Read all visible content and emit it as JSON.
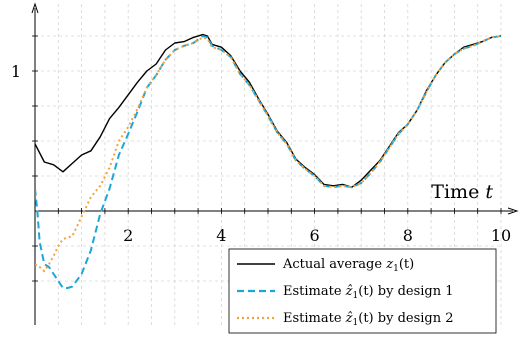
{
  "chart_data": {
    "type": "line",
    "xlabel": "Time",
    "xlabel_var": "t",
    "ylabel": "",
    "xlim": [
      0,
      10
    ],
    "ylim": [
      -0.75,
      1.45
    ],
    "xticks": [
      2,
      4,
      6,
      8,
      10
    ],
    "yticks": [
      1
    ],
    "grid": true,
    "legend_position": "bottom-right",
    "series": [
      {
        "name": "Actual average",
        "math_base": "z",
        "math_sub": "1",
        "math_tail": "(t)",
        "color": "#000000",
        "dash": "solid",
        "x": [
          0,
          0.2,
          0.4,
          0.6,
          0.8,
          1.0,
          1.2,
          1.4,
          1.6,
          1.8,
          2.0,
          2.2,
          2.4,
          2.6,
          2.8,
          3.0,
          3.2,
          3.4,
          3.6,
          3.7,
          3.8,
          4.0,
          4.2,
          4.4,
          4.6,
          4.8,
          5.0,
          5.2,
          5.4,
          5.6,
          5.8,
          6.0,
          6.2,
          6.4,
          6.6,
          6.8,
          7.0,
          7.2,
          7.4,
          7.6,
          7.8,
          8.0,
          8.2,
          8.4,
          8.6,
          8.8,
          9.0,
          9.2,
          9.4,
          9.6,
          9.8,
          10.0
        ],
        "y": [
          0.48,
          0.35,
          0.33,
          0.28,
          0.34,
          0.4,
          0.43,
          0.53,
          0.66,
          0.74,
          0.83,
          0.92,
          1.0,
          1.05,
          1.15,
          1.2,
          1.21,
          1.24,
          1.26,
          1.25,
          1.19,
          1.17,
          1.11,
          1.0,
          0.92,
          0.8,
          0.69,
          0.57,
          0.49,
          0.37,
          0.31,
          0.26,
          0.19,
          0.18,
          0.19,
          0.17,
          0.22,
          0.29,
          0.36,
          0.46,
          0.56,
          0.62,
          0.72,
          0.86,
          0.97,
          1.06,
          1.12,
          1.17,
          1.19,
          1.21,
          1.24,
          1.25
        ]
      },
      {
        "name": "Estimate",
        "name_suffix": "by design 1",
        "math_base": "ẑ",
        "math_sub": "1",
        "math_tail": "(t)",
        "color": "#1aa6d9",
        "dash": "7,4",
        "x": [
          0,
          0.05,
          0.1,
          0.2,
          0.3,
          0.4,
          0.5,
          0.6,
          0.7,
          0.8,
          1.0,
          1.2,
          1.4,
          1.6,
          1.8,
          2.0,
          2.2,
          2.4,
          2.6,
          2.8,
          3.0,
          3.2,
          3.4,
          3.6,
          3.7,
          3.8,
          4.0,
          4.2,
          4.4,
          4.6,
          4.8,
          5.0,
          5.2,
          5.4,
          5.6,
          5.8,
          6.0,
          6.2,
          6.4,
          6.6,
          6.8,
          7.0,
          7.2,
          7.4,
          7.6,
          7.8,
          8.0,
          8.2,
          8.4,
          8.6,
          8.8,
          9.0,
          9.2,
          9.4,
          9.6,
          9.8,
          10.0
        ],
        "y": [
          0.16,
          0.0,
          -0.22,
          -0.38,
          -0.4,
          -0.45,
          -0.5,
          -0.55,
          -0.55,
          -0.54,
          -0.45,
          -0.28,
          -0.02,
          0.16,
          0.4,
          0.55,
          0.71,
          0.88,
          0.97,
          1.08,
          1.15,
          1.18,
          1.2,
          1.25,
          1.24,
          1.18,
          1.15,
          1.1,
          0.98,
          0.9,
          0.79,
          0.68,
          0.56,
          0.48,
          0.36,
          0.3,
          0.25,
          0.18,
          0.17,
          0.18,
          0.17,
          0.2,
          0.27,
          0.35,
          0.45,
          0.55,
          0.62,
          0.72,
          0.85,
          0.97,
          1.06,
          1.12,
          1.16,
          1.18,
          1.21,
          1.24,
          1.25
        ]
      },
      {
        "name": "Estimate",
        "name_suffix": "by design 2",
        "math_base": "ẑ",
        "math_sub": "1",
        "math_tail": "(t)",
        "color": "#f2a33a",
        "dash": "2,3",
        "x": [
          0,
          0.1,
          0.2,
          0.3,
          0.4,
          0.5,
          0.6,
          0.8,
          1.0,
          1.2,
          1.4,
          1.6,
          1.8,
          2.0,
          2.2,
          2.4,
          2.6,
          2.8,
          3.0,
          3.2,
          3.4,
          3.6,
          3.7,
          3.8,
          4.0,
          4.2,
          4.4,
          4.6,
          4.8,
          5.0,
          5.2,
          5.4,
          5.6,
          5.8,
          6.0,
          6.2,
          6.4,
          6.6,
          6.8,
          7.0,
          7.2,
          7.4,
          7.6,
          7.8,
          8.0,
          8.2,
          8.4,
          8.6,
          8.8,
          9.0,
          9.2,
          9.4,
          9.6,
          9.8,
          10.0
        ],
        "y": [
          -0.38,
          -0.4,
          -0.43,
          -0.38,
          -0.32,
          -0.25,
          -0.2,
          -0.18,
          -0.04,
          0.1,
          0.18,
          0.31,
          0.5,
          0.6,
          0.73,
          0.88,
          0.97,
          1.08,
          1.15,
          1.18,
          1.2,
          1.24,
          1.23,
          1.17,
          1.15,
          1.1,
          0.98,
          0.9,
          0.79,
          0.68,
          0.56,
          0.48,
          0.36,
          0.3,
          0.25,
          0.18,
          0.17,
          0.18,
          0.17,
          0.2,
          0.27,
          0.35,
          0.45,
          0.55,
          0.62,
          0.72,
          0.85,
          0.97,
          1.06,
          1.12,
          1.16,
          1.18,
          1.21,
          1.24,
          1.25
        ]
      }
    ]
  }
}
